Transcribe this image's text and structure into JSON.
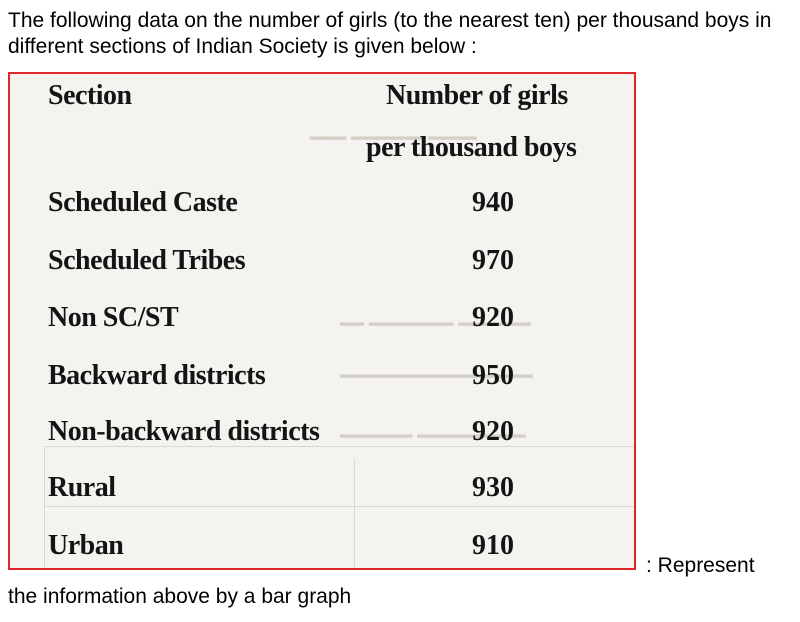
{
  "question": {
    "intro": "The following data on the number of girls (to the nearest ten) per thousand boys in different sections of Indian Society is given below :",
    "instruction_part1": ": Represent",
    "instruction_part2": "the information above by a bar graph"
  },
  "table": {
    "header_section": "Section",
    "header_value_line1": "Number of girls",
    "header_value_line2": "per thousand boys",
    "rows": [
      {
        "section": "Scheduled Caste",
        "value": "940"
      },
      {
        "section": "Scheduled Tribes",
        "value": "970"
      },
      {
        "section": "Non SC/ST",
        "value": "920"
      },
      {
        "section": "Backward districts",
        "value": "950"
      },
      {
        "section": "Non-backward districts",
        "value": "920"
      },
      {
        "section": "Rural",
        "value": "930"
      },
      {
        "section": "Urban",
        "value": "910"
      }
    ]
  },
  "colors": {
    "frame_border": "#e0262b",
    "scan_background": "#f4f3ef"
  }
}
